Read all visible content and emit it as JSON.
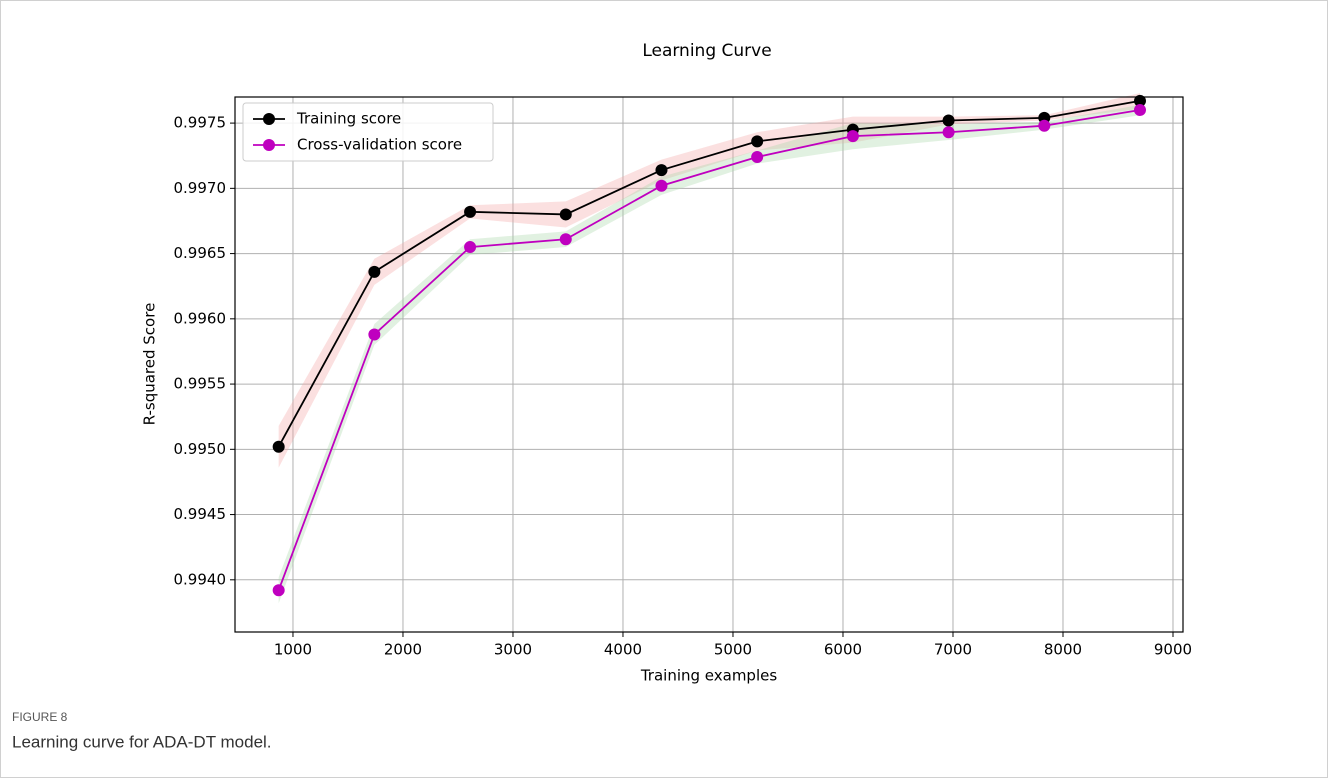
{
  "figure_label": "FIGURE 8",
  "caption": "Learning curve for ADA-DT model.",
  "chart_data": {
    "type": "line",
    "title": "Learning Curve",
    "x_label": "Training examples",
    "y_label": "R-squared Score",
    "x": [
      870,
      1740,
      2610,
      3480,
      4350,
      5220,
      6090,
      6960,
      7830,
      8700
    ],
    "series": [
      {
        "name": "Training score",
        "color": "#000000",
        "band_color": "#f4a6a6",
        "values": [
          0.99502,
          0.99636,
          0.99682,
          0.9968,
          0.99714,
          0.99736,
          0.99745,
          0.99752,
          0.99754,
          0.99767
        ],
        "std": [
          0.00016,
          0.0001,
          5e-05,
          0.0001,
          8e-05,
          7e-05,
          0.0001,
          3e-05,
          2e-05,
          6e-05
        ]
      },
      {
        "name": "Cross-validation score",
        "color": "#bf00bf",
        "band_color": "#a8d8a8",
        "values": [
          0.99392,
          0.99588,
          0.99655,
          0.99661,
          0.99702,
          0.99724,
          0.9974,
          0.99743,
          0.99748,
          0.9976
        ],
        "std": [
          0.0001,
          8e-05,
          6e-05,
          6e-05,
          7e-05,
          5e-05,
          0.0001,
          6e-05,
          3e-05,
          4e-05
        ]
      }
    ],
    "xlim": [
      473,
      9091
    ],
    "xticks": [
      1000,
      2000,
      3000,
      4000,
      5000,
      6000,
      7000,
      8000,
      9000
    ],
    "ylim": [
      0.9936,
      0.9977
    ],
    "yticks": [
      {
        "value": 0.994,
        "label": "0.9940"
      },
      0.9945,
      {
        "value": 0.995,
        "label": "0.9950"
      },
      0.9955,
      {
        "value": 0.996,
        "label": "0.9960"
      },
      0.9965,
      {
        "value": 0.997,
        "label": "0.9970"
      },
      0.9975
    ],
    "grid": true,
    "legend": "upper left"
  }
}
